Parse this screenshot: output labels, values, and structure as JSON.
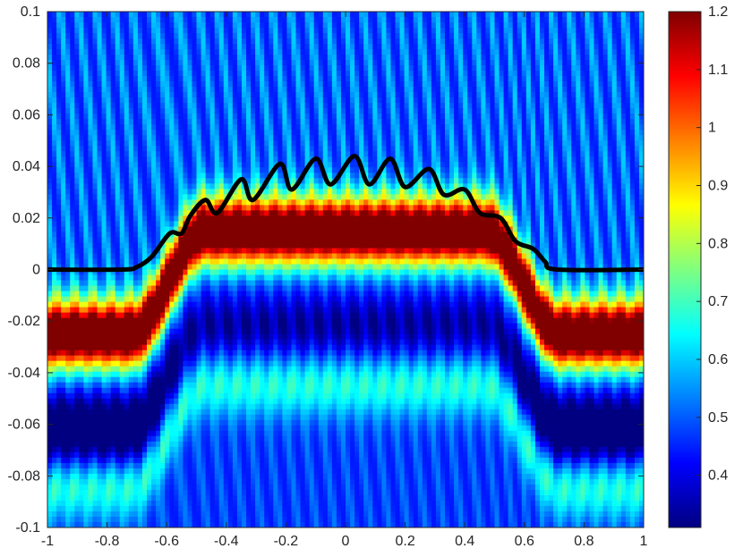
{
  "chart_data": {
    "type": "heatmap",
    "title": "",
    "xlabel": "",
    "ylabel": "",
    "xlim": [
      -1,
      1
    ],
    "ylim": [
      -0.1,
      0.1
    ],
    "colormap": "jet",
    "clim": [
      0.31,
      1.2
    ],
    "x_ticks": [
      "-1",
      "-0.8",
      "-0.6",
      "-0.4",
      "-0.2",
      "0",
      "0.2",
      "0.4",
      "0.6",
      "0.8",
      "1"
    ],
    "y_ticks": [
      "-0.1",
      "-0.08",
      "-0.06",
      "-0.04",
      "-0.02",
      "0",
      "0.02",
      "0.04",
      "0.06",
      "0.08",
      "0.1"
    ],
    "colorbar_ticks": [
      "0.4",
      "0.5",
      "0.6",
      "0.7",
      "0.8",
      "0.9",
      "1",
      "1.1",
      "1.2"
    ],
    "colorbar_tick_values": [
      0.4,
      0.5,
      0.6,
      0.7,
      0.8,
      0.9,
      1.0,
      1.1,
      1.2
    ],
    "field_description": {
      "ridge_period_x": 0.061,
      "boundary_plateau_y": 0.04,
      "boundary_ripple_amplitude": 0.005,
      "boundary_support": [
        -0.72,
        0.72
      ]
    },
    "boundary_curve": {
      "name": "",
      "color": "#000000",
      "points": [
        {
          "x": -1.0,
          "y": 0.0
        },
        {
          "x": -0.75,
          "y": 0.0
        },
        {
          "x": -0.7,
          "y": 0.001
        },
        {
          "x": -0.65,
          "y": 0.005
        },
        {
          "x": -0.59,
          "y": 0.014
        },
        {
          "x": -0.55,
          "y": 0.014
        },
        {
          "x": -0.52,
          "y": 0.021
        },
        {
          "x": -0.47,
          "y": 0.027
        },
        {
          "x": -0.43,
          "y": 0.022
        },
        {
          "x": -0.35,
          "y": 0.035
        },
        {
          "x": -0.31,
          "y": 0.027
        },
        {
          "x": -0.22,
          "y": 0.041
        },
        {
          "x": -0.18,
          "y": 0.031
        },
        {
          "x": -0.1,
          "y": 0.043
        },
        {
          "x": -0.05,
          "y": 0.033
        },
        {
          "x": 0.03,
          "y": 0.044
        },
        {
          "x": 0.08,
          "y": 0.033
        },
        {
          "x": 0.15,
          "y": 0.043
        },
        {
          "x": 0.2,
          "y": 0.032
        },
        {
          "x": 0.28,
          "y": 0.039
        },
        {
          "x": 0.33,
          "y": 0.029
        },
        {
          "x": 0.4,
          "y": 0.031
        },
        {
          "x": 0.45,
          "y": 0.022
        },
        {
          "x": 0.52,
          "y": 0.02
        },
        {
          "x": 0.57,
          "y": 0.011
        },
        {
          "x": 0.63,
          "y": 0.008
        },
        {
          "x": 0.67,
          "y": 0.003
        },
        {
          "x": 0.71,
          "y": 0.0
        },
        {
          "x": 1.0,
          "y": 0.0
        }
      ]
    },
    "grid": false,
    "legend": "none"
  }
}
